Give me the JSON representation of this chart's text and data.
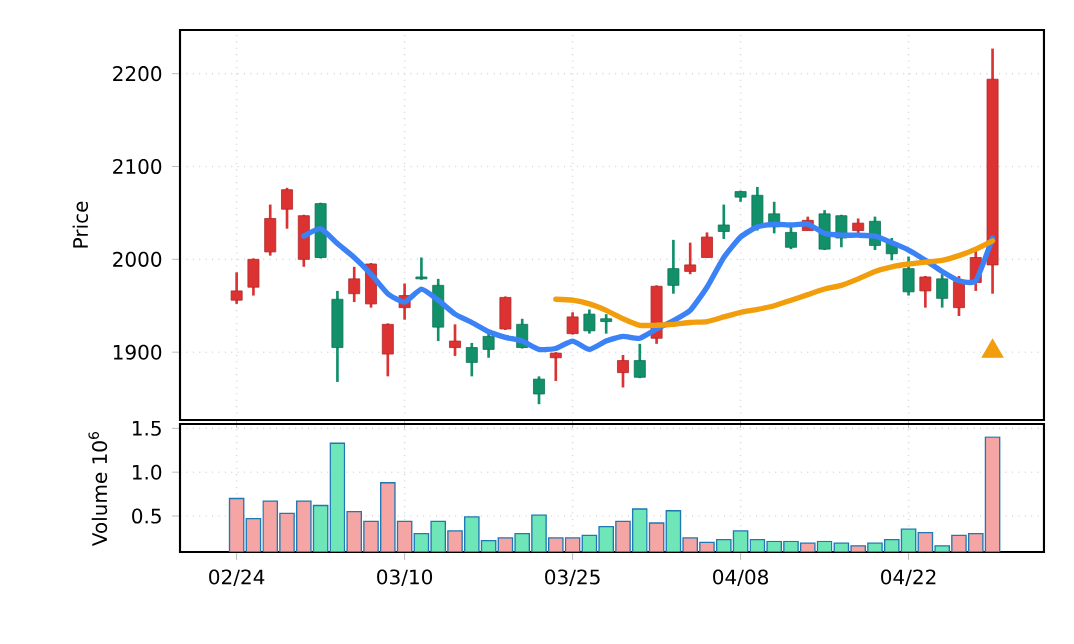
{
  "chart_data": [
    {
      "type": "candlestick",
      "ylabel": "Price",
      "ylim": [
        1827,
        2247
      ],
      "yticks": [
        1900,
        2000,
        2100,
        2200
      ],
      "grid": true,
      "tick_labels": "y",
      "categories": [
        null,
        null,
        null,
        null,
        null,
        null,
        null,
        null,
        null,
        null,
        null,
        null,
        null,
        null,
        null,
        null,
        null,
        null,
        null,
        null,
        null,
        null,
        null,
        null,
        null,
        null,
        null,
        null,
        null,
        null,
        null,
        null,
        null,
        null,
        null,
        null,
        null,
        null,
        null,
        null,
        null,
        null,
        null,
        null,
        null,
        null
      ],
      "ohlc": [
        [
          1966,
          1986,
          1952,
          1956
        ],
        [
          2000,
          2001,
          1961,
          1970
        ],
        [
          2044,
          2059,
          2004,
          2008
        ],
        [
          2075,
          2077,
          2033,
          2054
        ],
        [
          2047,
          2048,
          1992,
          2000
        ],
        [
          2002,
          2061,
          2001,
          2060
        ],
        [
          1905,
          1966,
          1868,
          1957
        ],
        [
          1979,
          1992,
          1954,
          1963
        ],
        [
          1995,
          1996,
          1948,
          1952
        ],
        [
          1930,
          1931,
          1874,
          1898
        ],
        [
          1961,
          1974,
          1935,
          1948
        ],
        [
          1979,
          2002,
          1978,
          1981
        ],
        [
          1927,
          1979,
          1912,
          1972
        ],
        [
          1912,
          1930,
          1896,
          1905
        ],
        [
          1889,
          1910,
          1874,
          1905
        ],
        [
          1903,
          1923,
          1894,
          1917
        ],
        [
          1959,
          1960,
          1924,
          1925
        ],
        [
          1905,
          1936,
          1904,
          1930
        ],
        [
          1855,
          1874,
          1844,
          1871
        ],
        [
          1899,
          1900,
          1869,
          1894
        ],
        [
          1938,
          1943,
          1919,
          1920
        ],
        [
          1923,
          1946,
          1920,
          1941
        ],
        [
          1933,
          1941,
          1920,
          1936
        ],
        [
          1891,
          1897,
          1862,
          1878
        ],
        [
          1873,
          1909,
          1872,
          1891
        ],
        [
          1971,
          1972,
          1909,
          1915
        ],
        [
          1972,
          2021,
          1963,
          1990
        ],
        [
          1994,
          2018,
          1984,
          1987
        ],
        [
          2024,
          2029,
          2002,
          2002
        ],
        [
          2030,
          2059,
          2022,
          2037
        ],
        [
          2067,
          2074,
          2062,
          2073
        ],
        [
          2035,
          2078,
          2031,
          2069
        ],
        [
          2035,
          2062,
          2028,
          2049
        ],
        [
          2013,
          2035,
          2011,
          2029
        ],
        [
          2042,
          2046,
          2031,
          2031
        ],
        [
          2011,
          2053,
          2010,
          2049
        ],
        [
          2023,
          2048,
          2013,
          2047
        ],
        [
          2039,
          2044,
          2028,
          2031
        ],
        [
          2015,
          2046,
          2010,
          2041
        ],
        [
          2006,
          2023,
          1999,
          2018
        ],
        [
          1965,
          2003,
          1961,
          1990
        ],
        [
          1981,
          1982,
          1948,
          1966
        ],
        [
          1958,
          1984,
          1948,
          1979
        ],
        [
          1976,
          1982,
          1939,
          1948
        ],
        [
          2002,
          2010,
          1966,
          1975
        ],
        [
          2194,
          2227,
          1963,
          1994
        ]
      ],
      "colors": [
        "#dc3232",
        "#dc3232",
        "#dc3232",
        "#dc3232",
        "#dc3232",
        "#12906a",
        "#12906a",
        "#dc3232",
        "#dc3232",
        "#dc3232",
        "#dc3232",
        "#12906a",
        "#12906a",
        "#dc3232",
        "#12906a",
        "#12906a",
        "#dc3232",
        "#12906a",
        "#12906a",
        "#dc3232",
        "#dc3232",
        "#12906a",
        "#12906a",
        "#dc3232",
        "#12906a",
        "#dc3232",
        "#12906a",
        "#dc3232",
        "#dc3232",
        "#12906a",
        "#12906a",
        "#12906a",
        "#12906a",
        "#12906a",
        "#dc3232",
        "#12906a",
        "#12906a",
        "#dc3232",
        "#12906a",
        "#12906a",
        "#12906a",
        "#dc3232",
        "#12906a",
        "#dc3232",
        "#dc3232",
        "#dc3232"
      ],
      "series": [
        {
          "type": "line",
          "color": "#3b82f6",
          "values": [
            null,
            null,
            null,
            null,
            2025,
            2033,
            2017,
            2002,
            1984,
            1963,
            1954,
            1968,
            1956,
            1941,
            1932,
            1922,
            1916,
            1912,
            1903,
            1904,
            1912,
            1903,
            1912,
            1917,
            1915,
            1925,
            1934,
            1945,
            1970,
            2002,
            2024,
            2035,
            2038,
            2037,
            2038,
            2028,
            2026,
            2026,
            2025,
            2018,
            2010,
            1999,
            1987,
            1977,
            1977,
            2023
          ]
        },
        {
          "type": "line",
          "color": "#f29e0c",
          "values": [
            null,
            null,
            null,
            null,
            null,
            null,
            null,
            null,
            null,
            null,
            null,
            null,
            null,
            null,
            null,
            null,
            null,
            null,
            null,
            1957,
            1956,
            1952,
            1945,
            1936,
            1929,
            1929,
            1930,
            1932,
            1933,
            1938,
            1943,
            1946,
            1950,
            1956,
            1962,
            1968,
            1972,
            1979,
            1987,
            1992,
            1995,
            1997,
            1999,
            2004,
            2011,
            2020
          ]
        },
        {
          "type": "scatter",
          "marker": "triangle",
          "color": "#f29e0c",
          "values": [
            null,
            null,
            null,
            null,
            null,
            null,
            null,
            null,
            null,
            null,
            null,
            null,
            null,
            null,
            null,
            null,
            null,
            null,
            null,
            null,
            null,
            null,
            null,
            null,
            null,
            null,
            null,
            null,
            null,
            null,
            null,
            null,
            null,
            null,
            null,
            null,
            null,
            null,
            null,
            null,
            null,
            null,
            null,
            null,
            null,
            1901
          ]
        }
      ]
    },
    {
      "type": "bar",
      "ylabel": "Volume  10$^{6}$",
      "ylim": [
        0.09,
        1.55
      ],
      "yticks": [
        0.5,
        {
          "value": 1.0,
          "label": "1.0"
        },
        1.5
      ],
      "grid": true,
      "categories": [
        "02/24",
        null,
        null,
        null,
        null,
        null,
        null,
        null,
        null,
        null,
        "03/10",
        null,
        null,
        null,
        null,
        null,
        null,
        null,
        null,
        null,
        "03/25",
        null,
        null,
        null,
        null,
        null,
        null,
        null,
        null,
        null,
        "04/08",
        null,
        null,
        null,
        null,
        null,
        null,
        null,
        null,
        null,
        "04/22",
        null,
        null,
        null,
        null,
        null
      ],
      "values": [
        0.7,
        0.47,
        0.67,
        0.53,
        0.67,
        0.62,
        1.33,
        0.55,
        0.44,
        0.88,
        0.44,
        0.3,
        0.44,
        0.33,
        0.49,
        0.22,
        0.25,
        0.3,
        0.51,
        0.25,
        0.25,
        0.28,
        0.38,
        0.44,
        0.58,
        0.42,
        0.56,
        0.25,
        0.2,
        0.23,
        0.33,
        0.23,
        0.21,
        0.21,
        0.19,
        0.21,
        0.19,
        0.16,
        0.19,
        0.23,
        0.35,
        0.31,
        0.16,
        0.28,
        0.3,
        1.4
      ],
      "colors": [
        "#f5a5a3",
        "#f5a5a3",
        "#f5a5a3",
        "#f5a5a3",
        "#f5a5a3",
        "#6ee6b8",
        "#6ee6b8",
        "#f5a5a3",
        "#f5a5a3",
        "#f5a5a3",
        "#f5a5a3",
        "#6ee6b8",
        "#6ee6b8",
        "#f5a5a3",
        "#6ee6b8",
        "#6ee6b8",
        "#f5a5a3",
        "#6ee6b8",
        "#6ee6b8",
        "#f5a5a3",
        "#f5a5a3",
        "#6ee6b8",
        "#6ee6b8",
        "#f5a5a3",
        "#6ee6b8",
        "#f5a5a3",
        "#6ee6b8",
        "#f5a5a3",
        "#f5a5a3",
        "#6ee6b8",
        "#6ee6b8",
        "#6ee6b8",
        "#6ee6b8",
        "#6ee6b8",
        "#f5a5a3",
        "#6ee6b8",
        "#6ee6b8",
        "#f5a5a3",
        "#6ee6b8",
        "#6ee6b8",
        "#6ee6b8",
        "#f5a5a3",
        "#6ee6b8",
        "#f5a5a3",
        "#f5a5a3",
        "#f5a5a3"
      ]
    }
  ]
}
